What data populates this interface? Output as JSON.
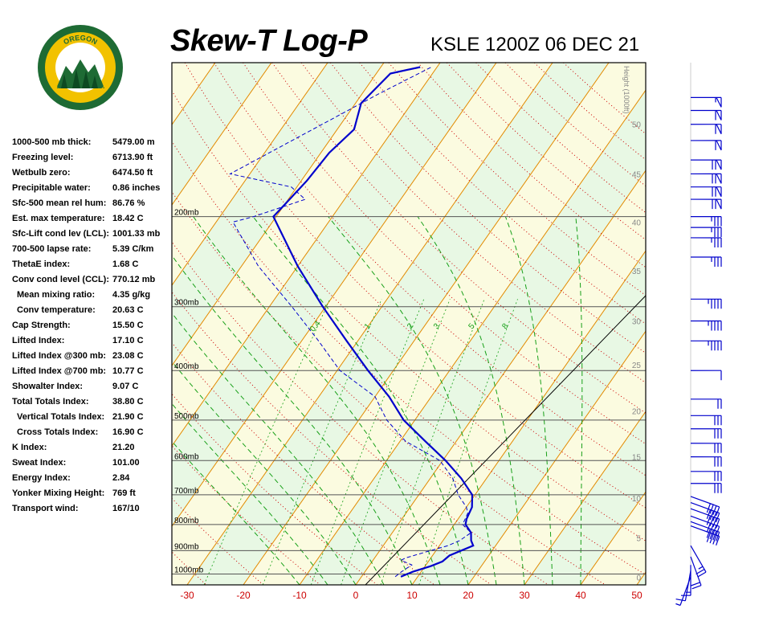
{
  "header": {
    "title": "Skew-T Log-P",
    "station_time": "KSLE 1200Z 06 DEC 21"
  },
  "logo": {
    "top_text": "OREGON",
    "bottom_text": "DEPARTMENT OF FORESTRY",
    "colors": {
      "ring": "#1e6b34",
      "band": "#f2c200",
      "tree": "#1e6b34"
    }
  },
  "indices": [
    {
      "label": "1000-500 mb thick:",
      "value": "5479.00 m"
    },
    {
      "label": "Freezing level:",
      "value": "6713.90 ft"
    },
    {
      "label": "Wetbulb zero:",
      "value": "6474.50 ft"
    },
    {
      "label": "Precipitable water:",
      "value": "0.86 inches"
    },
    {
      "label": "Sfc-500 mean rel hum:",
      "value": "86.76 %"
    },
    {
      "label": "Est. max temperature:",
      "value": "18.42 C"
    },
    {
      "label": "Sfc-Lift cond lev (LCL):",
      "value": "1001.33 mb"
    },
    {
      "label": "700-500 lapse rate:",
      "value": "5.39 C/km"
    },
    {
      "label": "ThetaE index:",
      "value": "1.68 C"
    },
    {
      "label": "Conv cond level (CCL):",
      "value": "770.12 mb"
    },
    {
      "label": "Mean mixing ratio:",
      "value": "4.35 g/kg",
      "indent": true
    },
    {
      "label": "Conv temperature:",
      "value": "20.63 C",
      "indent": true
    },
    {
      "label": "Cap Strength:",
      "value": "15.50 C"
    },
    {
      "label": "Lifted Index:",
      "value": "17.10 C"
    },
    {
      "label": "Lifted Index @300 mb:",
      "value": "23.08 C"
    },
    {
      "label": "Lifted Index @700 mb:",
      "value": "10.77 C"
    },
    {
      "label": "Showalter Index:",
      "value": "9.07 C"
    },
    {
      "label": "Total Totals Index:",
      "value": "38.80 C"
    },
    {
      "label": "Vertical Totals Index:",
      "value": "21.90 C",
      "indent": true
    },
    {
      "label": "Cross Totals Index:",
      "value": "16.90 C",
      "indent": true
    },
    {
      "label": "K Index:",
      "value": "21.20"
    },
    {
      "label": "Sweat Index:",
      "value": "101.00"
    },
    {
      "label": "Energy Index:",
      "value": "2.84"
    },
    {
      "label": "Yonker Mixing Height:",
      "value": "769 ft"
    },
    {
      "label": "Transport wind:",
      "value": "167/10"
    }
  ],
  "chart_data": {
    "type": "line",
    "x_ticks": [
      -30,
      -20,
      -10,
      0,
      10,
      20,
      30,
      40,
      50
    ],
    "x_unit": "C",
    "pressure_levels": [
      {
        "p": 200,
        "label": "200mb"
      },
      {
        "p": 300,
        "label": "300mb"
      },
      {
        "p": 400,
        "label": "400mb"
      },
      {
        "p": 500,
        "label": "500mb"
      },
      {
        "p": 600,
        "label": "600mb"
      },
      {
        "p": 700,
        "label": "700mb"
      },
      {
        "p": 800,
        "label": "800mb"
      },
      {
        "p": 900,
        "label": "900mb"
      },
      {
        "p": 1000,
        "label": "1000mb"
      }
    ],
    "height_axis_label": "Height (1000ft)",
    "height_ticks": [
      {
        "h": 0,
        "p": 1015
      },
      {
        "h": 5,
        "p": 850
      },
      {
        "h": 10,
        "p": 710
      },
      {
        "h": 15,
        "p": 590
      },
      {
        "h": 20,
        "p": 480
      },
      {
        "h": 25,
        "p": 390
      },
      {
        "h": 30,
        "p": 320
      },
      {
        "h": 35,
        "p": 255
      },
      {
        "h": 40,
        "p": 205
      },
      {
        "h": 45,
        "p": 165
      },
      {
        "h": 50,
        "p": 132
      }
    ],
    "mixing_ratio_labels": [
      "0.4",
      "1",
      "2",
      "3",
      "5",
      "8"
    ],
    "temperature": [
      {
        "p": 1012,
        "t": 7.0
      },
      {
        "p": 990,
        "t": 8.5
      },
      {
        "p": 965,
        "t": 11.0
      },
      {
        "p": 945,
        "t": 12.5
      },
      {
        "p": 920,
        "t": 13.0
      },
      {
        "p": 880,
        "t": 16.0
      },
      {
        "p": 860,
        "t": 15.0
      },
      {
        "p": 830,
        "t": 14.0
      },
      {
        "p": 800,
        "t": 12.0
      },
      {
        "p": 780,
        "t": 11.5
      },
      {
        "p": 740,
        "t": 11.0
      },
      {
        "p": 700,
        "t": 9.5
      },
      {
        "p": 650,
        "t": 5.5
      },
      {
        "p": 600,
        "t": 0.5
      },
      {
        "p": 550,
        "t": -5.5
      },
      {
        "p": 500,
        "t": -12.0
      },
      {
        "p": 450,
        "t": -17.5
      },
      {
        "p": 400,
        "t": -24.5
      },
      {
        "p": 350,
        "t": -32.0
      },
      {
        "p": 300,
        "t": -40.5
      },
      {
        "p": 250,
        "t": -50.0
      },
      {
        "p": 200,
        "t": -60.5
      },
      {
        "p": 190,
        "t": -60.0
      },
      {
        "p": 170,
        "t": -59.0
      },
      {
        "p": 150,
        "t": -58.5
      },
      {
        "p": 135,
        "t": -57.0
      },
      {
        "p": 120,
        "t": -59.0
      },
      {
        "p": 105,
        "t": -57.5
      },
      {
        "p": 102,
        "t": -53.0
      }
    ],
    "dewpoint": [
      {
        "p": 1012,
        "t": 6.0
      },
      {
        "p": 990,
        "t": 6.5
      },
      {
        "p": 960,
        "t": 7.5
      },
      {
        "p": 940,
        "t": 5.0
      },
      {
        "p": 930,
        "t": 5.5
      },
      {
        "p": 900,
        "t": 9.0
      },
      {
        "p": 880,
        "t": 11.5
      },
      {
        "p": 860,
        "t": 13.0
      },
      {
        "p": 830,
        "t": 14.0
      },
      {
        "p": 800,
        "t": 11.5
      },
      {
        "p": 760,
        "t": 11.0
      },
      {
        "p": 740,
        "t": 10.0
      },
      {
        "p": 700,
        "t": 7.0
      },
      {
        "p": 650,
        "t": 4.0
      },
      {
        "p": 600,
        "t": -0.5
      },
      {
        "p": 550,
        "t": -9.0
      },
      {
        "p": 500,
        "t": -15.0
      },
      {
        "p": 450,
        "t": -20.0
      },
      {
        "p": 400,
        "t": -29.5
      },
      {
        "p": 350,
        "t": -37.0
      },
      {
        "p": 300,
        "t": -46.0
      },
      {
        "p": 250,
        "t": -57.0
      },
      {
        "p": 205,
        "t": -67.0
      },
      {
        "p": 200,
        "t": -64.0
      },
      {
        "p": 185,
        "t": -57.0
      },
      {
        "p": 175,
        "t": -61.0
      },
      {
        "p": 165,
        "t": -73.5
      },
      {
        "p": 140,
        "t": -66.0
      },
      {
        "p": 115,
        "t": -57.0
      },
      {
        "p": 102,
        "t": -51.0
      }
    ],
    "wind_barbs": [
      {
        "p": 1012,
        "dir": 160,
        "speed": 5
      },
      {
        "p": 985,
        "dir": 170,
        "speed": 10
      },
      {
        "p": 960,
        "dir": 180,
        "speed": 15
      },
      {
        "p": 925,
        "dir": 200,
        "speed": 20
      },
      {
        "p": 880,
        "dir": 210,
        "speed": 25
      },
      {
        "p": 805,
        "dir": 250,
        "speed": 40
      },
      {
        "p": 790,
        "dir": 250,
        "speed": 40
      },
      {
        "p": 770,
        "dir": 250,
        "speed": 40
      },
      {
        "p": 745,
        "dir": 250,
        "speed": 40
      },
      {
        "p": 725,
        "dir": 250,
        "speed": 40
      },
      {
        "p": 705,
        "dir": 250,
        "speed": 40
      },
      {
        "p": 665,
        "dir": 270,
        "speed": 30
      },
      {
        "p": 630,
        "dir": 270,
        "speed": 30
      },
      {
        "p": 590,
        "dir": 270,
        "speed": 30
      },
      {
        "p": 555,
        "dir": 270,
        "speed": 30
      },
      {
        "p": 520,
        "dir": 270,
        "speed": 30
      },
      {
        "p": 490,
        "dir": 270,
        "speed": 30
      },
      {
        "p": 455,
        "dir": 270,
        "speed": 20
      },
      {
        "p": 400,
        "dir": 270,
        "speed": 10
      },
      {
        "p": 350,
        "dir": 270,
        "speed": 45
      },
      {
        "p": 320,
        "dir": 270,
        "speed": 45
      },
      {
        "p": 290,
        "dir": 270,
        "speed": 45
      },
      {
        "p": 240,
        "dir": 270,
        "speed": 35
      },
      {
        "p": 220,
        "dir": 270,
        "speed": 35
      },
      {
        "p": 210,
        "dir": 270,
        "speed": 35
      },
      {
        "p": 200,
        "dir": 270,
        "speed": 35
      },
      {
        "p": 185,
        "dir": 270,
        "speed": 70
      },
      {
        "p": 175,
        "dir": 270,
        "speed": 70
      },
      {
        "p": 165,
        "dir": 270,
        "speed": 70
      },
      {
        "p": 155,
        "dir": 270,
        "speed": 70
      },
      {
        "p": 142,
        "dir": 270,
        "speed": 60
      },
      {
        "p": 132,
        "dir": 270,
        "speed": 60
      },
      {
        "p": 124,
        "dir": 270,
        "speed": 60
      },
      {
        "p": 117,
        "dir": 270,
        "speed": 55
      }
    ],
    "colors": {
      "temperature": "#0000cc",
      "dewpoint": "#0000cc",
      "isotherm": "#e38a00",
      "dry_adiabat": "#cc0000",
      "moist_adiabat": "#18a018",
      "mixing_ratio": "#18a018",
      "axis_label": "#cc0000",
      "band_light": "#fbfbe0",
      "band_alt": "#e8f8e4"
    }
  }
}
